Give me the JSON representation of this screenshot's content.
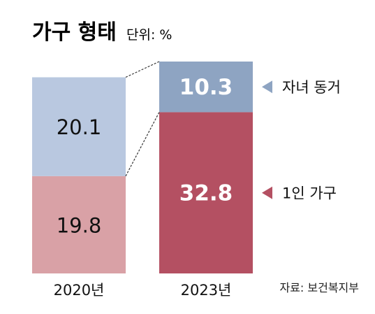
{
  "chart_data": {
    "type": "bar",
    "title": "가구 형태",
    "unit": "단위: %",
    "categories": [
      "2020년",
      "2023년"
    ],
    "bars": [
      {
        "category": "2020년",
        "segments": [
          {
            "value": 19.8,
            "label": "19.8",
            "color": "#d9a1a6"
          },
          {
            "value": 20.1,
            "label": "20.1",
            "color": "#b9c8e0"
          }
        ]
      },
      {
        "category": "2023년",
        "segments": [
          {
            "value": 32.8,
            "label": "32.8",
            "color": "#b45062"
          },
          {
            "value": 10.3,
            "label": "10.3",
            "color": "#8ea4c2"
          }
        ]
      }
    ],
    "legend": [
      {
        "label": "자녀 동거",
        "color": "#8ea4c2"
      },
      {
        "label": "1인 가구",
        "color": "#b45062"
      }
    ],
    "source": "자료: 보건복지부"
  }
}
